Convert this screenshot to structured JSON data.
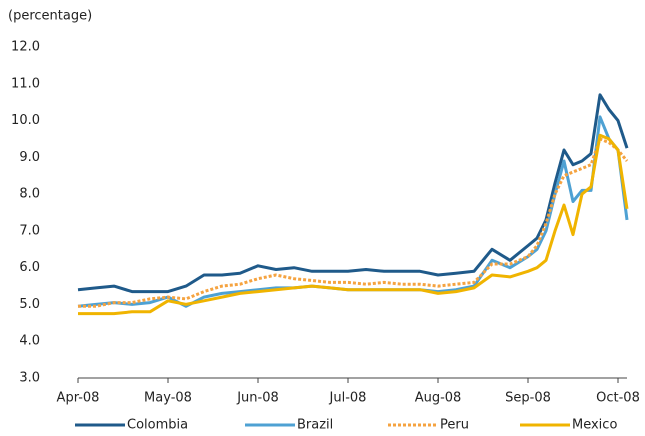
{
  "chart_data": {
    "type": "line",
    "y_label": "(percentage)",
    "x": [
      0,
      0.2,
      0.4,
      0.6,
      0.8,
      1.0,
      1.2,
      1.4,
      1.6,
      1.8,
      2.0,
      2.2,
      2.4,
      2.6,
      2.8,
      3.0,
      3.2,
      3.4,
      3.6,
      3.8,
      4.0,
      4.2,
      4.4,
      4.6,
      4.8,
      5.0,
      5.1,
      5.2,
      5.3,
      5.4,
      5.5,
      5.6,
      5.7,
      5.8,
      5.9,
      6.0,
      6.1
    ],
    "xlim": [
      0,
      6.1
    ],
    "xticks": [
      {
        "value": 0,
        "label": "Apr-08"
      },
      {
        "value": 1,
        "label": "May-08"
      },
      {
        "value": 2,
        "label": "Jun-08"
      },
      {
        "value": 3,
        "label": "Jul-08"
      },
      {
        "value": 4,
        "label": "Aug-08"
      },
      {
        "value": 5,
        "label": "Sep-08"
      },
      {
        "value": 6,
        "label": "Oct-08"
      }
    ],
    "ylim": [
      3,
      12
    ],
    "yticks": [
      {
        "value": 3,
        "label": "3.0"
      },
      {
        "value": 4,
        "label": "4.0"
      },
      {
        "value": 5,
        "label": "5.0"
      },
      {
        "value": 6,
        "label": "6.0"
      },
      {
        "value": 7,
        "label": "7.0"
      },
      {
        "value": 8,
        "label": "8.0"
      },
      {
        "value": 9,
        "label": "9.0"
      },
      {
        "value": 10,
        "label": "10.0"
      },
      {
        "value": 11,
        "label": "11.0"
      },
      {
        "value": 12,
        "label": "12.0"
      }
    ],
    "grid": false,
    "legend": "bottom",
    "series": [
      {
        "name": "Colombia",
        "color": "#1f5a8a",
        "style": "solid",
        "values": [
          5.4,
          5.45,
          5.5,
          5.35,
          5.35,
          5.35,
          5.5,
          5.8,
          5.8,
          5.85,
          6.05,
          5.95,
          6.0,
          5.9,
          5.9,
          5.9,
          5.95,
          5.9,
          5.9,
          5.9,
          5.8,
          5.85,
          5.9,
          6.5,
          6.2,
          6.6,
          6.8,
          7.3,
          8.3,
          9.2,
          8.8,
          8.9,
          9.1,
          10.7,
          10.3,
          10.0,
          9.25
        ]
      },
      {
        "name": "Brazil",
        "color": "#4ea1d3",
        "style": "solid",
        "values": [
          4.95,
          5.0,
          5.05,
          5.0,
          5.05,
          5.2,
          4.95,
          5.2,
          5.3,
          5.35,
          5.4,
          5.45,
          5.45,
          5.5,
          5.45,
          5.4,
          5.4,
          5.4,
          5.4,
          5.4,
          5.35,
          5.4,
          5.5,
          6.2,
          6.0,
          6.3,
          6.5,
          7.0,
          8.0,
          8.9,
          7.8,
          8.1,
          8.1,
          10.1,
          9.5,
          9.2,
          7.3
        ]
      },
      {
        "name": "Peru",
        "color": "#f5a340",
        "style": "dotted",
        "values": [
          4.95,
          4.95,
          5.05,
          5.05,
          5.15,
          5.2,
          5.15,
          5.35,
          5.5,
          5.55,
          5.7,
          5.8,
          5.7,
          5.65,
          5.6,
          5.6,
          5.55,
          5.6,
          5.55,
          5.55,
          5.5,
          5.55,
          5.6,
          6.1,
          6.1,
          6.3,
          6.6,
          7.2,
          8.0,
          8.5,
          8.6,
          8.7,
          8.8,
          9.5,
          9.4,
          9.2,
          8.9
        ]
      },
      {
        "name": "Mexico",
        "color": "#f0b400",
        "style": "solid",
        "values": [
          4.75,
          4.75,
          4.75,
          4.8,
          4.8,
          5.1,
          5.0,
          5.1,
          5.2,
          5.3,
          5.35,
          5.4,
          5.45,
          5.5,
          5.45,
          5.4,
          5.4,
          5.4,
          5.4,
          5.4,
          5.3,
          5.35,
          5.45,
          5.8,
          5.75,
          5.9,
          6.0,
          6.2,
          7.0,
          7.7,
          6.9,
          8.0,
          8.2,
          9.6,
          9.5,
          9.2,
          7.6
        ]
      }
    ]
  }
}
